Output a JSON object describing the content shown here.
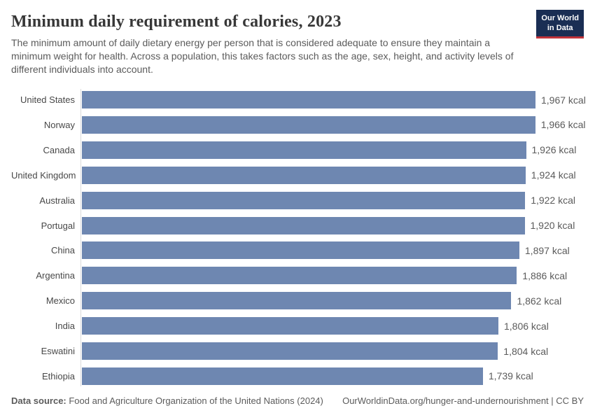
{
  "header": {
    "title": "Minimum daily requirement of calories, 2023",
    "subtitle": "The minimum amount of daily dietary energy per person that is considered adequate to ensure they maintain a minimum weight for health. Across a population, this takes factors such as the age, sex, height, and activity levels of different individuals into account.",
    "logo": {
      "line1": "Our World",
      "line2": "in Data"
    }
  },
  "chart_data": {
    "type": "bar",
    "orientation": "horizontal",
    "title": "Minimum daily requirement of calories, 2023",
    "categories": [
      "United States",
      "Norway",
      "Canada",
      "United Kingdom",
      "Australia",
      "Portugal",
      "China",
      "Argentina",
      "Mexico",
      "India",
      "Eswatini",
      "Ethiopia"
    ],
    "values": [
      1967,
      1966,
      1926,
      1924,
      1922,
      1920,
      1897,
      1886,
      1862,
      1806,
      1804,
      1739
    ],
    "value_labels": [
      "1,967 kcal",
      "1,966 kcal",
      "1,926 kcal",
      "1,924 kcal",
      "1,922 kcal",
      "1,920 kcal",
      "1,897 kcal",
      "1,886 kcal",
      "1,862 kcal",
      "1,806 kcal",
      "1,804 kcal",
      "1,739 kcal"
    ],
    "unit": "kcal",
    "xlim": [
      0,
      1967
    ],
    "grid": false,
    "legend": "none",
    "bar_color": "#6e87b1"
  },
  "footer": {
    "source_label": "Data source:",
    "source_text": " Food and Agriculture Organization of the United Nations (2024)",
    "credit": "OurWorldinData.org/hunger-and-undernourishment | CC BY"
  },
  "colors": {
    "bar": "#6e87b1",
    "logo_background": "#1a2e54",
    "logo_red": "#c0333a",
    "axis": "#dcdcdc"
  }
}
